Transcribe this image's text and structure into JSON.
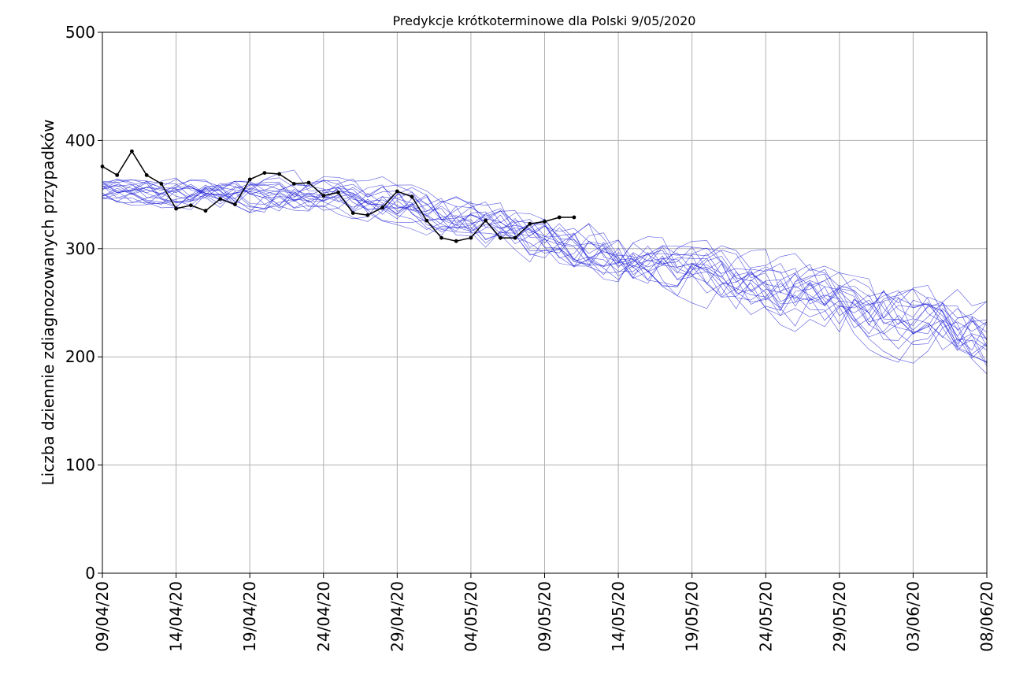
{
  "chart_data": {
    "type": "line",
    "title": "Predykcje krótkoterminowe dla Polski 9/05/2020",
    "xlabel": "",
    "ylabel": "Liczba dziennie zdiagnozowanych przypadków",
    "xlim": [
      "2020-04-09",
      "2020-06-08"
    ],
    "ylim": [
      0,
      500
    ],
    "grid": true,
    "x_ticks": [
      "09/04/20",
      "14/04/20",
      "19/04/20",
      "24/04/20",
      "29/04/20",
      "04/05/20",
      "09/05/20",
      "14/05/20",
      "19/05/20",
      "24/05/20",
      "29/05/20",
      "03/06/20",
      "08/06/20"
    ],
    "y_ticks": [
      "0",
      "100",
      "200",
      "300",
      "400",
      "500"
    ],
    "colors": {
      "observed": "#000000",
      "predictions": "#1c1cd6"
    },
    "observed": {
      "x": [
        "2020-04-09",
        "2020-04-10",
        "2020-04-11",
        "2020-04-12",
        "2020-04-13",
        "2020-04-14",
        "2020-04-15",
        "2020-04-16",
        "2020-04-17",
        "2020-04-18",
        "2020-04-19",
        "2020-04-20",
        "2020-04-21",
        "2020-04-22",
        "2020-04-23",
        "2020-04-24",
        "2020-04-25",
        "2020-04-26",
        "2020-04-27",
        "2020-04-28",
        "2020-04-29",
        "2020-04-30",
        "2020-05-01",
        "2020-05-02",
        "2020-05-03",
        "2020-05-04",
        "2020-05-05",
        "2020-05-06",
        "2020-05-07",
        "2020-05-08",
        "2020-05-09",
        "2020-05-10",
        "2020-05-11"
      ],
      "values": [
        376,
        368,
        390,
        368,
        360,
        337,
        340,
        335,
        346,
        341,
        364,
        370,
        369,
        360,
        361,
        349,
        352,
        333,
        331,
        338,
        353,
        348,
        326,
        310,
        307,
        310,
        326,
        310,
        310,
        323,
        325,
        329,
        329
      ]
    },
    "predictions": {
      "description_free": true,
      "count": 20,
      "start": "2020-04-09",
      "days": 61,
      "trend_values": [
        355,
        354,
        353,
        352,
        351,
        351,
        350,
        350,
        350,
        350,
        350,
        351,
        351,
        351,
        351,
        350,
        349,
        347,
        345,
        343,
        341,
        338,
        335,
        332,
        329,
        326,
        323,
        320,
        317,
        313,
        310,
        306,
        303,
        300,
        297,
        294,
        291,
        288,
        285,
        282,
        279,
        276,
        273,
        270,
        267,
        264,
        261,
        258,
        255,
        252,
        249,
        246,
        243,
        240,
        237,
        234,
        231,
        228,
        225,
        222,
        219
      ]
    }
  }
}
